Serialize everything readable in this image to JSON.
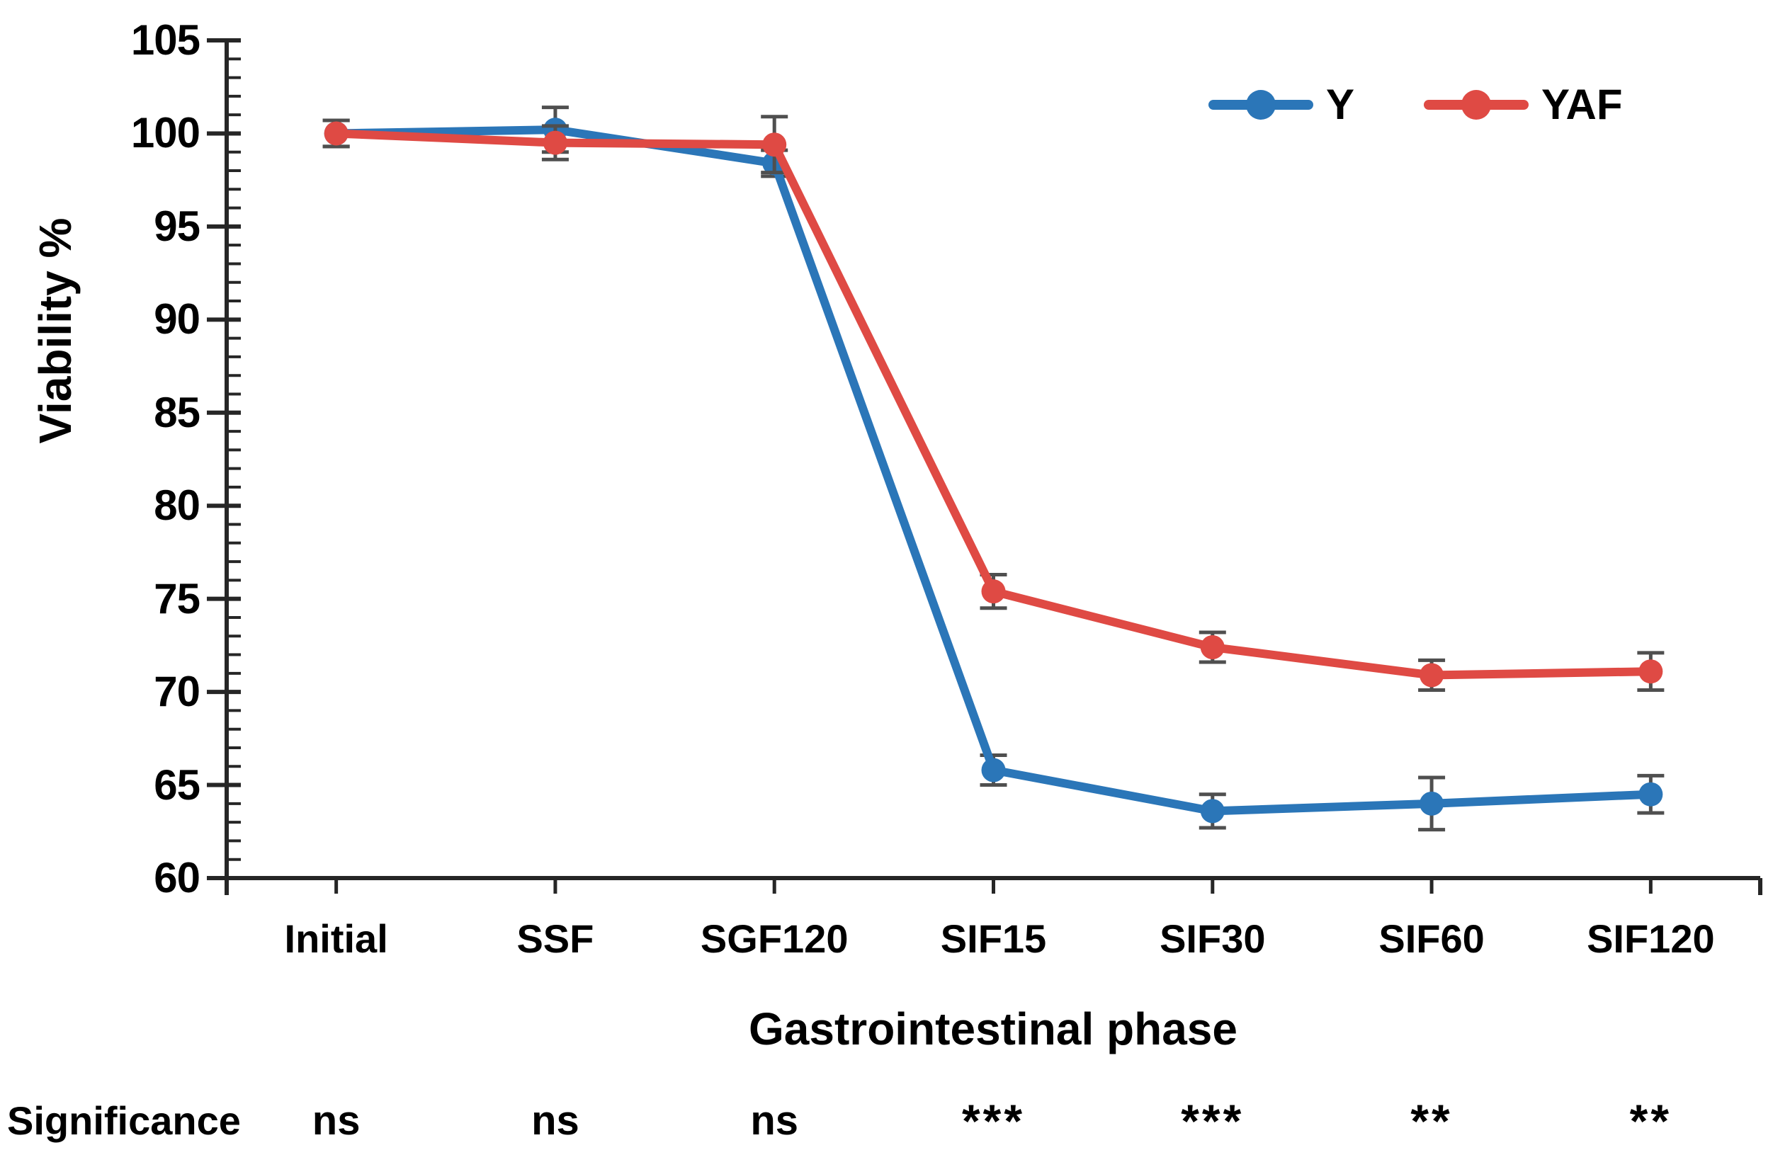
{
  "figure": {
    "background": "#ffffff",
    "text_color": "#000000",
    "axis_color": "#262626",
    "errorbar_color": "#4f4f4f"
  },
  "chart_data": {
    "type": "line",
    "title": "",
    "xlabel": "Gastrointestinal phase",
    "ylabel": "Viability %",
    "categories": [
      "Initial",
      "SSF",
      "SGF120",
      "SIF15",
      "SIF30",
      "SIF60",
      "SIF120"
    ],
    "ylim": [
      60,
      105
    ],
    "ytick_major": 5,
    "ytick_minor": 1,
    "grid": false,
    "legend_position": "top-right",
    "marker": "circle",
    "series": [
      {
        "name": "Y",
        "color": "#2b76b8",
        "values": [
          100.0,
          100.2,
          98.4,
          65.8,
          63.6,
          64.0,
          64.5
        ],
        "errors": [
          0.7,
          1.2,
          0.7,
          0.8,
          0.9,
          1.4,
          1.0
        ]
      },
      {
        "name": "YAF",
        "color": "#df4a44",
        "values": [
          100.0,
          99.5,
          99.4,
          75.4,
          72.4,
          70.9,
          71.1
        ],
        "errors": [
          0.7,
          0.9,
          1.5,
          0.9,
          0.8,
          0.8,
          1.0
        ]
      }
    ],
    "significance": {
      "label": "Significance",
      "values": [
        "ns",
        "ns",
        "ns",
        "***",
        "***",
        "**",
        "**"
      ]
    }
  }
}
